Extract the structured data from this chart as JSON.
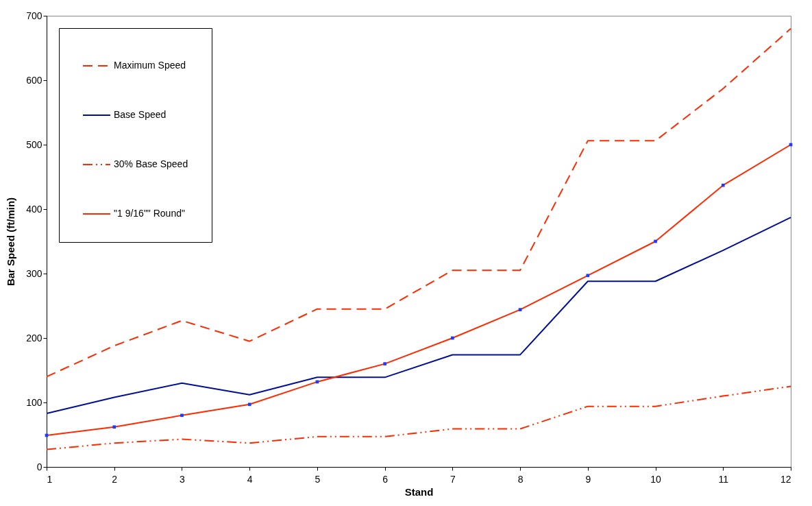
{
  "chart_data": {
    "type": "line",
    "xlabel": "Stand",
    "ylabel": "Bar Speed (ft/min)",
    "x": [
      1,
      2,
      3,
      4,
      5,
      6,
      7,
      8,
      9,
      10,
      11,
      12
    ],
    "xlim": [
      1,
      12
    ],
    "xticks": [
      1,
      2,
      3,
      4,
      5,
      6,
      7,
      8,
      9,
      10,
      11,
      12
    ],
    "ylim": [
      0,
      700
    ],
    "yticks": [
      0,
      100,
      200,
      300,
      400,
      500,
      600,
      700
    ],
    "grid": false,
    "legend": "top left",
    "series": [
      {
        "name": "Maximum Speed",
        "color": "#ff2a00",
        "line_style": "dashed",
        "values": [
          140,
          188,
          227,
          195,
          245,
          245,
          305,
          305,
          506,
          506,
          587,
          680
        ]
      },
      {
        "name": "Base Speed",
        "color": "#000f99",
        "line_style": "solid",
        "values": [
          83,
          108,
          130,
          112,
          139,
          139,
          174,
          174,
          288,
          288,
          336,
          387
        ]
      },
      {
        "name": "30% Base Speed",
        "color": "#ff2a00",
        "line_style": "dashdot",
        "values": [
          27,
          37,
          43,
          37,
          47,
          47,
          59,
          59,
          94,
          94,
          110,
          125
        ]
      },
      {
        "name": "\"1 9/16\"\" Round\"",
        "color": "#ff2a00",
        "line_style": "solid",
        "marker": "square",
        "values": [
          49,
          62,
          80,
          97,
          132,
          160,
          200,
          244,
          297,
          350,
          437,
          500
        ]
      }
    ]
  }
}
